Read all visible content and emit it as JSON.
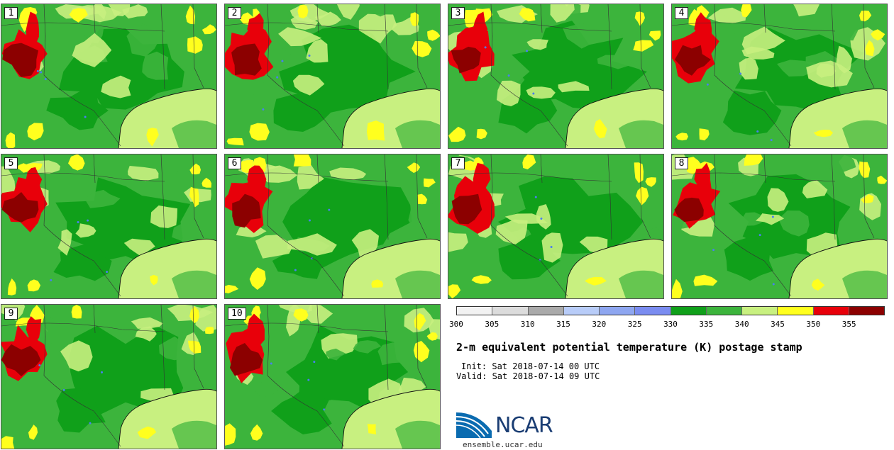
{
  "panels": [
    {
      "label": "1"
    },
    {
      "label": "2"
    },
    {
      "label": "3"
    },
    {
      "label": "4"
    },
    {
      "label": "5"
    },
    {
      "label": "6"
    },
    {
      "label": "7"
    },
    {
      "label": "8"
    },
    {
      "label": "9"
    },
    {
      "label": "10"
    }
  ],
  "colorbar": {
    "colors": [
      "#f2f2f2",
      "#dcdcdc",
      "#aaaaaa",
      "#b8ccf8",
      "#8ea6f0",
      "#7a8cf0",
      "#10a01a",
      "#3cb43c",
      "#c8f080",
      "#ffff1e",
      "#e8000a",
      "#8c0000"
    ],
    "ticks": [
      "300",
      "305",
      "310",
      "315",
      "320",
      "325",
      "330",
      "335",
      "340",
      "345",
      "350",
      "355"
    ]
  },
  "map_colors": {
    "base": "#c8f080",
    "mid": "#3cb43c",
    "dark": "#10a01a",
    "warm": "#ffff1e",
    "hot": "#e8000a",
    "hotter": "#8c0000",
    "water": "#4a7ef0"
  },
  "title": "2-m equivalent potential temperature (K) postage stamp",
  "init": "Init: Sat 2018-07-14 00 UTC",
  "valid": "Valid: Sat 2018-07-14 09 UTC",
  "logo": {
    "text": "NCAR"
  },
  "site": "ensemble.ucar.edu"
}
